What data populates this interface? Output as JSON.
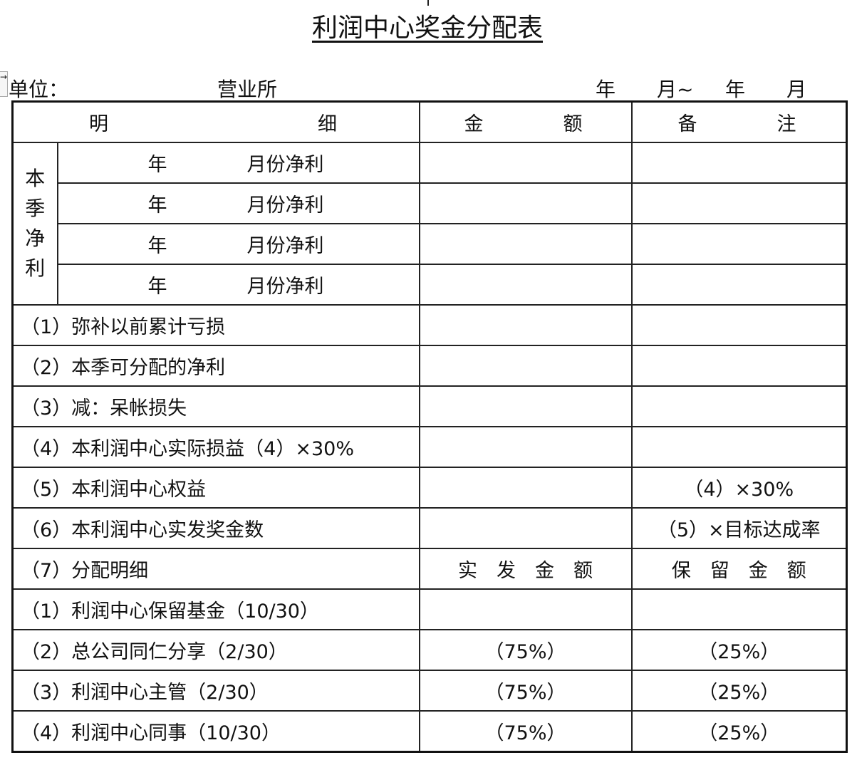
{
  "title": "利润中心奖金分配表",
  "unit": {
    "label": "单位：",
    "office": "营业所",
    "year1": "年",
    "month1": "月~",
    "year2": "年",
    "month2": "月"
  },
  "header": {
    "detail_a": "明",
    "detail_b": "细",
    "amount_a": "金",
    "amount_b": "额",
    "remark_a": "备",
    "remark_b": "注"
  },
  "quarter": {
    "label": [
      "本",
      "季",
      "净",
      "利"
    ],
    "rows": [
      {
        "year": "年",
        "month": "月份净利"
      },
      {
        "year": "年",
        "month": "月份净利"
      },
      {
        "year": "年",
        "month": "月份净利"
      },
      {
        "year": "年",
        "month": "月份净利"
      }
    ]
  },
  "rows": [
    {
      "detail": "（1）弥补以前累计亏损",
      "amount": "",
      "remark": ""
    },
    {
      "detail": "（2）本季可分配的净利",
      "amount": "",
      "remark": ""
    },
    {
      "detail": "（3）减：呆帐损失",
      "amount": "",
      "remark": ""
    },
    {
      "detail": "（4）本利润中心实际损益（4）×30%",
      "amount": "",
      "remark": ""
    },
    {
      "detail": "（5）本利润中心权益",
      "amount": "",
      "remark": "（4）×30%"
    },
    {
      "detail": "（6）本利润中心实发奖金数",
      "amount": "",
      "remark": "（5）×目标达成率"
    },
    {
      "detail": "（7）分配明细",
      "amount": "实　发　金　额",
      "remark": "保　留　金　额"
    },
    {
      "detail": "（1）利润中心保留基金（10/30）",
      "amount": "",
      "remark": ""
    },
    {
      "detail": "（2）总公司同仁分享（2/30）",
      "amount": "（75%）",
      "remark": "（25%）"
    },
    {
      "detail": "（3）利润中心主管（2/30）",
      "amount": "（75%）",
      "remark": "（25%）"
    },
    {
      "detail": "（4）利润中心同事（10/30）",
      "amount": "（75%）",
      "remark": "（25%）"
    }
  ]
}
